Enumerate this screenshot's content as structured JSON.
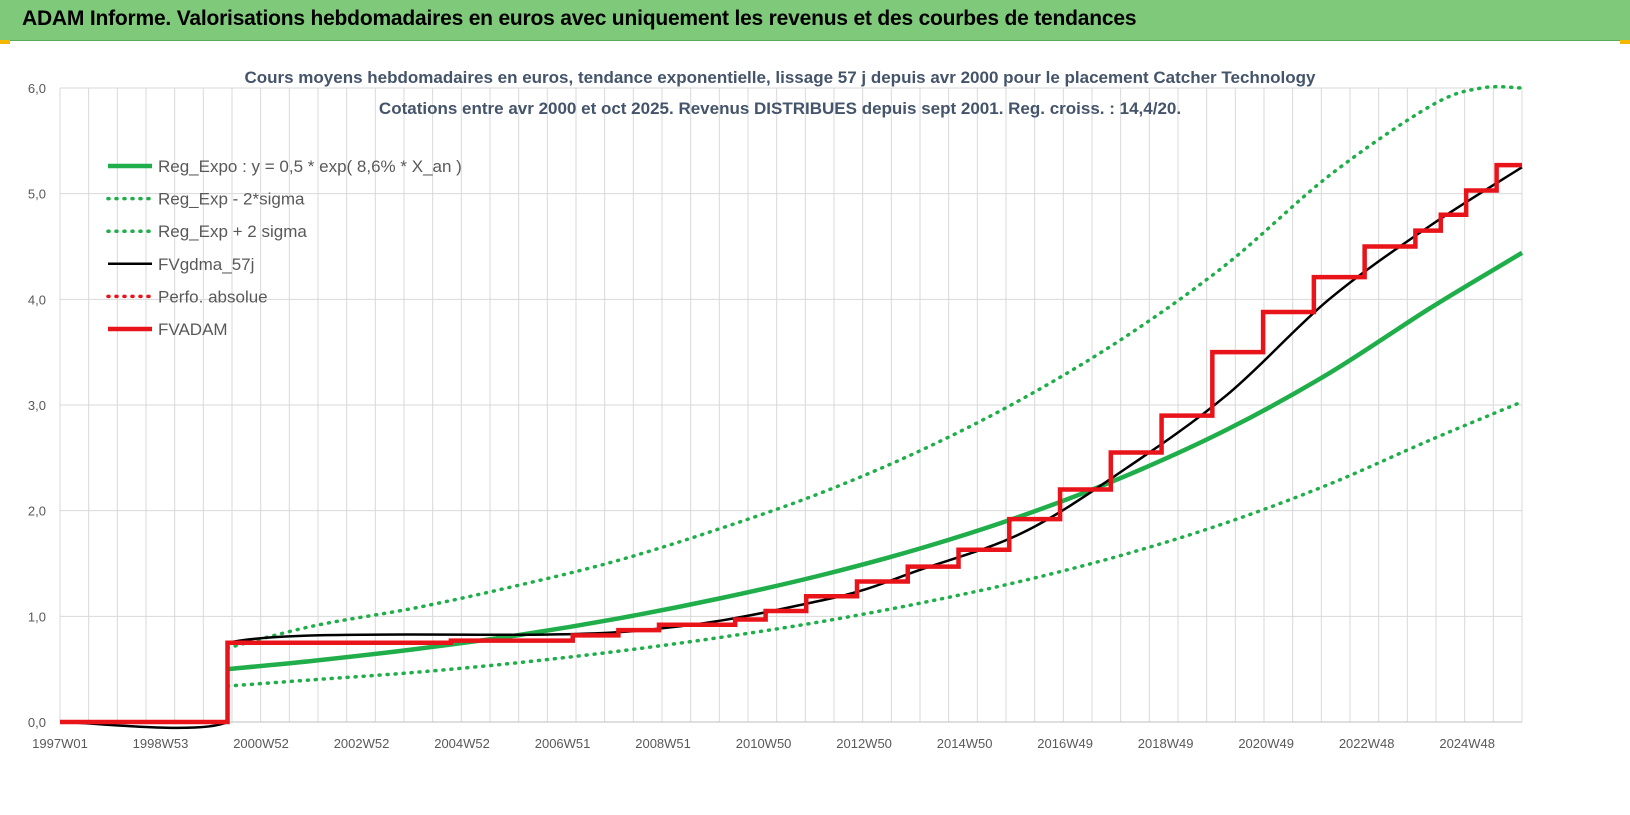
{
  "header": {
    "title": "ADAM Informe. Valorisations hebdomadaires en euros avec uniquement les revenus et des courbes de tendances"
  },
  "colors": {
    "header_bg": "#7fc97a",
    "green": "#1fae4a",
    "black": "#000000",
    "red": "#e8141a",
    "grid": "#d9d9d9"
  },
  "chart_data": {
    "type": "line",
    "title": "Cours moyens hebdomadaires en euros, tendance exponentielle, lissage 57 j depuis avr 2000 pour le placement Catcher Technology",
    "subtitle": "Cotations entre avr 2000 et oct 2025.  Revenus DISTRIBUES depuis sept 2001. Reg. croiss. : 14,4/20.",
    "xlabel": "",
    "ylabel": "",
    "x_range": [
      1997.0,
      2025.8
    ],
    "ylim": [
      0,
      6
    ],
    "y_ticks": [
      "0,0",
      "1,0",
      "2,0",
      "3,0",
      "4,0",
      "5,0",
      "6,0"
    ],
    "x_ticks": [
      "1997W01",
      "1998W53",
      "2000W52",
      "2002W52",
      "2004W52",
      "2006W51",
      "2008W51",
      "2010W50",
      "2012W50",
      "2014W50",
      "2016W49",
      "2018W49",
      "2020W49",
      "2022W48",
      "2024W48"
    ],
    "grid": true,
    "legend_position": "top-left",
    "series": [
      {
        "name": "Reg_Expo : y = 0,5 * exp( 8,6% *  X_an )",
        "style": "solid-thick",
        "color": "#1fae4a",
        "x": [
          2000.3,
          2002,
          2004,
          2006,
          2008,
          2010,
          2012,
          2014,
          2016,
          2018,
          2020,
          2022,
          2024,
          2025.8
        ],
        "values": [
          0.5,
          0.58,
          0.69,
          0.82,
          0.98,
          1.17,
          1.39,
          1.65,
          1.96,
          2.33,
          2.77,
          3.3,
          3.92,
          4.44
        ]
      },
      {
        "name": "Reg_Exp - 2*sigma",
        "style": "dotted",
        "color": "#1fae4a",
        "x": [
          2000.3,
          2002,
          2004,
          2006,
          2008,
          2010,
          2012,
          2014,
          2016,
          2018,
          2020,
          2022,
          2024,
          2025.8
        ],
        "values": [
          0.34,
          0.4,
          0.47,
          0.56,
          0.67,
          0.8,
          0.95,
          1.13,
          1.34,
          1.59,
          1.89,
          2.25,
          2.67,
          3.03
        ]
      },
      {
        "name": "Reg_Exp + 2 sigma",
        "style": "dotted",
        "color": "#1fae4a",
        "x": [
          2000.3,
          2002,
          2004,
          2006,
          2008,
          2010,
          2012,
          2014,
          2016,
          2018,
          2020,
          2022,
          2024,
          2025.0,
          2025.8
        ],
        "values": [
          0.7,
          0.91,
          1.08,
          1.29,
          1.53,
          1.83,
          2.17,
          2.58,
          3.07,
          3.65,
          4.34,
          5.17,
          5.83,
          6.0,
          6.0
        ]
      },
      {
        "name": "FVgdma_57j",
        "style": "solid",
        "color": "#000000",
        "x": [
          1997.0,
          2000.3,
          2000.31,
          2008.0,
          2012.0,
          2014.0,
          2016.0,
          2018.0,
          2020.0,
          2022.0,
          2024.0,
          2025.8
        ],
        "values": [
          0.0,
          0.0,
          0.75,
          0.85,
          1.15,
          1.45,
          1.8,
          2.4,
          3.1,
          4.0,
          4.7,
          5.25
        ]
      },
      {
        "name": "Perfo. absolue",
        "style": "dotted",
        "color": "#e8141a",
        "x": [],
        "values": []
      },
      {
        "name": "FVADAM",
        "style": "step-thick",
        "color": "#e8141a",
        "x": [
          1997.0,
          2000.3,
          2000.3,
          2004.7,
          2004.7,
          2007.1,
          2007.1,
          2008.0,
          2008.0,
          2008.8,
          2008.8,
          2010.3,
          2010.3,
          2010.9,
          2010.9,
          2011.7,
          2011.7,
          2012.7,
          2012.7,
          2013.7,
          2013.7,
          2014.7,
          2014.7,
          2015.7,
          2015.7,
          2016.7,
          2016.7,
          2017.7,
          2017.7,
          2018.7,
          2018.7,
          2019.7,
          2019.7,
          2020.7,
          2020.7,
          2021.7,
          2021.7,
          2022.7,
          2022.7,
          2023.7,
          2023.7,
          2024.2,
          2024.2,
          2024.7,
          2024.7,
          2025.3,
          2025.3,
          2025.8
        ],
        "values": [
          0.0,
          0.0,
          0.75,
          0.75,
          0.77,
          0.77,
          0.82,
          0.82,
          0.87,
          0.87,
          0.92,
          0.92,
          0.97,
          0.97,
          1.05,
          1.05,
          1.19,
          1.19,
          1.33,
          1.33,
          1.47,
          1.47,
          1.63,
          1.63,
          1.92,
          1.92,
          2.2,
          2.2,
          2.55,
          2.55,
          2.9,
          2.9,
          3.5,
          3.5,
          3.88,
          3.88,
          4.21,
          4.21,
          4.5,
          4.5,
          4.65,
          4.65,
          4.8,
          4.8,
          5.03,
          5.03,
          5.27,
          5.27
        ]
      }
    ]
  }
}
